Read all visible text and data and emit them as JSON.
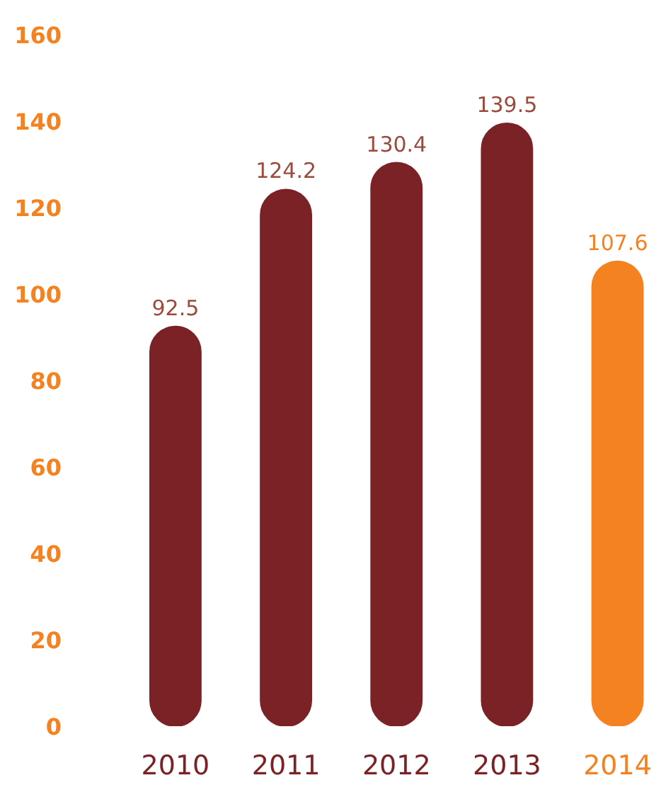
{
  "chart_data": {
    "type": "bar",
    "categories": [
      "2010",
      "2011",
      "2012",
      "2013",
      "2014"
    ],
    "values": [
      92.5,
      124.2,
      130.4,
      139.5,
      107.6
    ],
    "colors": [
      "#7b2226",
      "#7b2226",
      "#7b2226",
      "#7b2226",
      "#f58220"
    ],
    "ylim": [
      0,
      160
    ],
    "yticks": [
      0,
      20,
      40,
      60,
      80,
      100,
      120,
      140,
      160
    ],
    "grid": false,
    "data_labels": true
  }
}
